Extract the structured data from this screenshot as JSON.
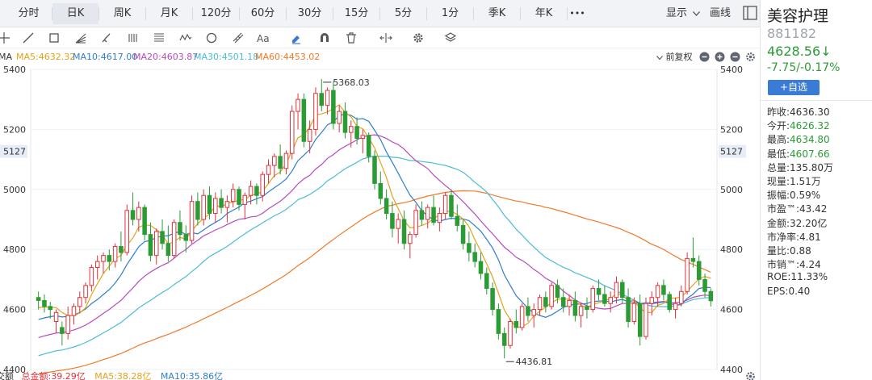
{
  "tabs": [
    "分时",
    "日K",
    "周K",
    "月K",
    "120分",
    "60分",
    "30分",
    "15分",
    "5分",
    "1分",
    "季K",
    "年K"
  ],
  "active_tab": "日K",
  "more_label": "•••",
  "display_label": "显示",
  "draw_label": "画线",
  "toolbar_icons": [
    "crosshair-icon",
    "line-icon",
    "rectangle-icon",
    "fan-icon",
    "brush-icon",
    "parallel-lines-icon",
    "text-lines-icon",
    "wave-icon",
    "circle-icon",
    "ruler-icon",
    "text-icon",
    "eraser-icon",
    "magnet-icon",
    "trash-icon",
    "split-icon",
    "settings-icon",
    "layers-icon"
  ],
  "legend": {
    "ma_label": "MA",
    "ma5": "MA5:4632.32",
    "ma10": "MA10:4617.00",
    "ma20": "MA20:4603.87",
    "ma30": "MA30:4501.18",
    "ma60": "MA60:4453.02",
    "adjust_label": "前复权"
  },
  "volume_legend": {
    "label": "成交额",
    "total": "总金额:39.29亿",
    "ma5": "MA5:38.28亿",
    "ma10": "MA10:35.86亿"
  },
  "colors": {
    "up": "#e0323b",
    "down": "#2b9c35",
    "ma5": "#e3a21a",
    "ma10": "#2f7ec9",
    "ma20": "#b54bbd",
    "ma30": "#4bbcd8",
    "ma60": "#f07a2a",
    "accent": "#3a7bd5"
  },
  "chart_data": {
    "type": "candlestick",
    "y_ticks": [
      "5400",
      "5200",
      "5000",
      "4800",
      "4600",
      "4400"
    ],
    "ylim": [
      4400,
      5400
    ],
    "highlight_tick": "5127",
    "max_annotation": "5368.03",
    "min_annotation": "4436.81",
    "candles": [
      [
        4640,
        4660,
        4600,
        4630
      ],
      [
        4630,
        4650,
        4590,
        4610
      ],
      [
        4610,
        4625,
        4570,
        4600
      ],
      [
        4560,
        4600,
        4520,
        4590
      ],
      [
        4540,
        4560,
        4480,
        4520
      ],
      [
        4520,
        4610,
        4500,
        4580
      ],
      [
        4580,
        4620,
        4550,
        4610
      ],
      [
        4610,
        4660,
        4590,
        4640
      ],
      [
        4640,
        4690,
        4620,
        4680
      ],
      [
        4680,
        4750,
        4660,
        4740
      ],
      [
        4740,
        4780,
        4700,
        4760
      ],
      [
        4760,
        4790,
        4720,
        4780
      ],
      [
        4780,
        4800,
        4730,
        4760
      ],
      [
        4760,
        4820,
        4740,
        4810
      ],
      [
        4810,
        4860,
        4760,
        4790
      ],
      [
        4790,
        4950,
        4780,
        4930
      ],
      [
        4930,
        4990,
        4880,
        4900
      ],
      [
        4900,
        4960,
        4860,
        4940
      ],
      [
        4940,
        4950,
        4830,
        4850
      ],
      [
        4850,
        4890,
        4760,
        4780
      ],
      [
        4780,
        4870,
        4750,
        4860
      ],
      [
        4860,
        4900,
        4800,
        4820
      ],
      [
        4820,
        4880,
        4760,
        4780
      ],
      [
        4780,
        4900,
        4770,
        4890
      ],
      [
        4890,
        4930,
        4830,
        4850
      ],
      [
        4850,
        4880,
        4790,
        4830
      ],
      [
        4830,
        4980,
        4820,
        4960
      ],
      [
        4960,
        4990,
        4880,
        4900
      ],
      [
        4900,
        5000,
        4880,
        4980
      ],
      [
        4980,
        5010,
        4900,
        4920
      ],
      [
        4920,
        4990,
        4890,
        4970
      ],
      [
        4970,
        5000,
        4920,
        4940
      ],
      [
        4940,
        4980,
        4890,
        4960
      ],
      [
        4960,
        5020,
        4940,
        5000
      ],
      [
        5000,
        5010,
        4930,
        4950
      ],
      [
        4950,
        4990,
        4900,
        4980
      ],
      [
        4980,
        5030,
        4950,
        5010
      ],
      [
        5010,
        5020,
        4950,
        4980
      ],
      [
        4980,
        5060,
        4960,
        5050
      ],
      [
        5050,
        5100,
        5020,
        5080
      ],
      [
        5080,
        5120,
        5040,
        5110
      ],
      [
        5110,
        5150,
        5050,
        5070
      ],
      [
        5070,
        5130,
        5050,
        5120
      ],
      [
        5120,
        5280,
        5100,
        5260
      ],
      [
        5260,
        5320,
        5200,
        5300
      ],
      [
        5300,
        5320,
        5140,
        5160
      ],
      [
        5160,
        5230,
        5120,
        5200
      ],
      [
        5200,
        5340,
        5180,
        5320
      ],
      [
        5320,
        5368,
        5260,
        5280
      ],
      [
        5280,
        5340,
        5250,
        5330
      ],
      [
        5330,
        5360,
        5200,
        5220
      ],
      [
        5220,
        5280,
        5190,
        5260
      ],
      [
        5260,
        5290,
        5170,
        5190
      ],
      [
        5190,
        5230,
        5140,
        5210
      ],
      [
        5210,
        5240,
        5150,
        5170
      ],
      [
        5170,
        5200,
        5120,
        5180
      ],
      [
        5180,
        5190,
        5090,
        5110
      ],
      [
        5110,
        5130,
        5000,
        5020
      ],
      [
        5020,
        5060,
        4950,
        4970
      ],
      [
        4970,
        5000,
        4900,
        4920
      ],
      [
        4920,
        4960,
        4840,
        4870
      ],
      [
        4870,
        4920,
        4820,
        4900
      ],
      [
        4900,
        4930,
        4800,
        4820
      ],
      [
        4820,
        4860,
        4770,
        4850
      ],
      [
        4850,
        4950,
        4840,
        4930
      ],
      [
        4930,
        4960,
        4880,
        4900
      ],
      [
        4900,
        4950,
        4870,
        4940
      ],
      [
        4940,
        4980,
        4880,
        4890
      ],
      [
        4890,
        4940,
        4860,
        4920
      ],
      [
        4920,
        4990,
        4900,
        4980
      ],
      [
        4980,
        5000,
        4900,
        4910
      ],
      [
        4910,
        4950,
        4860,
        4880
      ],
      [
        4880,
        4900,
        4800,
        4820
      ],
      [
        4820,
        4860,
        4760,
        4790
      ],
      [
        4790,
        4820,
        4740,
        4760
      ],
      [
        4760,
        4790,
        4700,
        4720
      ],
      [
        4720,
        4740,
        4650,
        4670
      ],
      [
        4670,
        4690,
        4580,
        4600
      ],
      [
        4600,
        4620,
        4500,
        4520
      ],
      [
        4520,
        4540,
        4437,
        4480
      ],
      [
        4480,
        4570,
        4470,
        4560
      ],
      [
        4560,
        4600,
        4520,
        4540
      ],
      [
        4540,
        4620,
        4530,
        4610
      ],
      [
        4610,
        4640,
        4560,
        4580
      ],
      [
        4580,
        4620,
        4540,
        4600
      ],
      [
        4600,
        4650,
        4580,
        4640
      ],
      [
        4640,
        4660,
        4590,
        4610
      ],
      [
        4610,
        4690,
        4600,
        4680
      ],
      [
        4680,
        4700,
        4620,
        4640
      ],
      [
        4640,
        4670,
        4590,
        4610
      ],
      [
        4610,
        4650,
        4580,
        4630
      ],
      [
        4630,
        4660,
        4560,
        4580
      ],
      [
        4580,
        4620,
        4540,
        4610
      ],
      [
        4610,
        4640,
        4570,
        4600
      ],
      [
        4600,
        4680,
        4590,
        4670
      ],
      [
        4670,
        4700,
        4630,
        4650
      ],
      [
        4650,
        4680,
        4610,
        4620
      ],
      [
        4620,
        4660,
        4590,
        4640
      ],
      [
        4640,
        4710,
        4620,
        4690
      ],
      [
        4690,
        4700,
        4620,
        4640
      ],
      [
        4640,
        4670,
        4540,
        4560
      ],
      [
        4560,
        4640,
        4550,
        4620
      ],
      [
        4620,
        4650,
        4480,
        4510
      ],
      [
        4510,
        4640,
        4500,
        4620
      ],
      [
        4620,
        4660,
        4580,
        4640
      ],
      [
        4640,
        4690,
        4610,
        4680
      ],
      [
        4680,
        4700,
        4630,
        4650
      ],
      [
        4650,
        4660,
        4590,
        4600
      ],
      [
        4600,
        4640,
        4570,
        4620
      ],
      [
        4620,
        4680,
        4610,
        4660
      ],
      [
        4660,
        4790,
        4650,
        4770
      ],
      [
        4770,
        4840,
        4740,
        4760
      ],
      [
        4760,
        4780,
        4680,
        4700
      ],
      [
        4700,
        4720,
        4640,
        4660
      ],
      [
        4660,
        4670,
        4610,
        4629
      ]
    ]
  }
}
